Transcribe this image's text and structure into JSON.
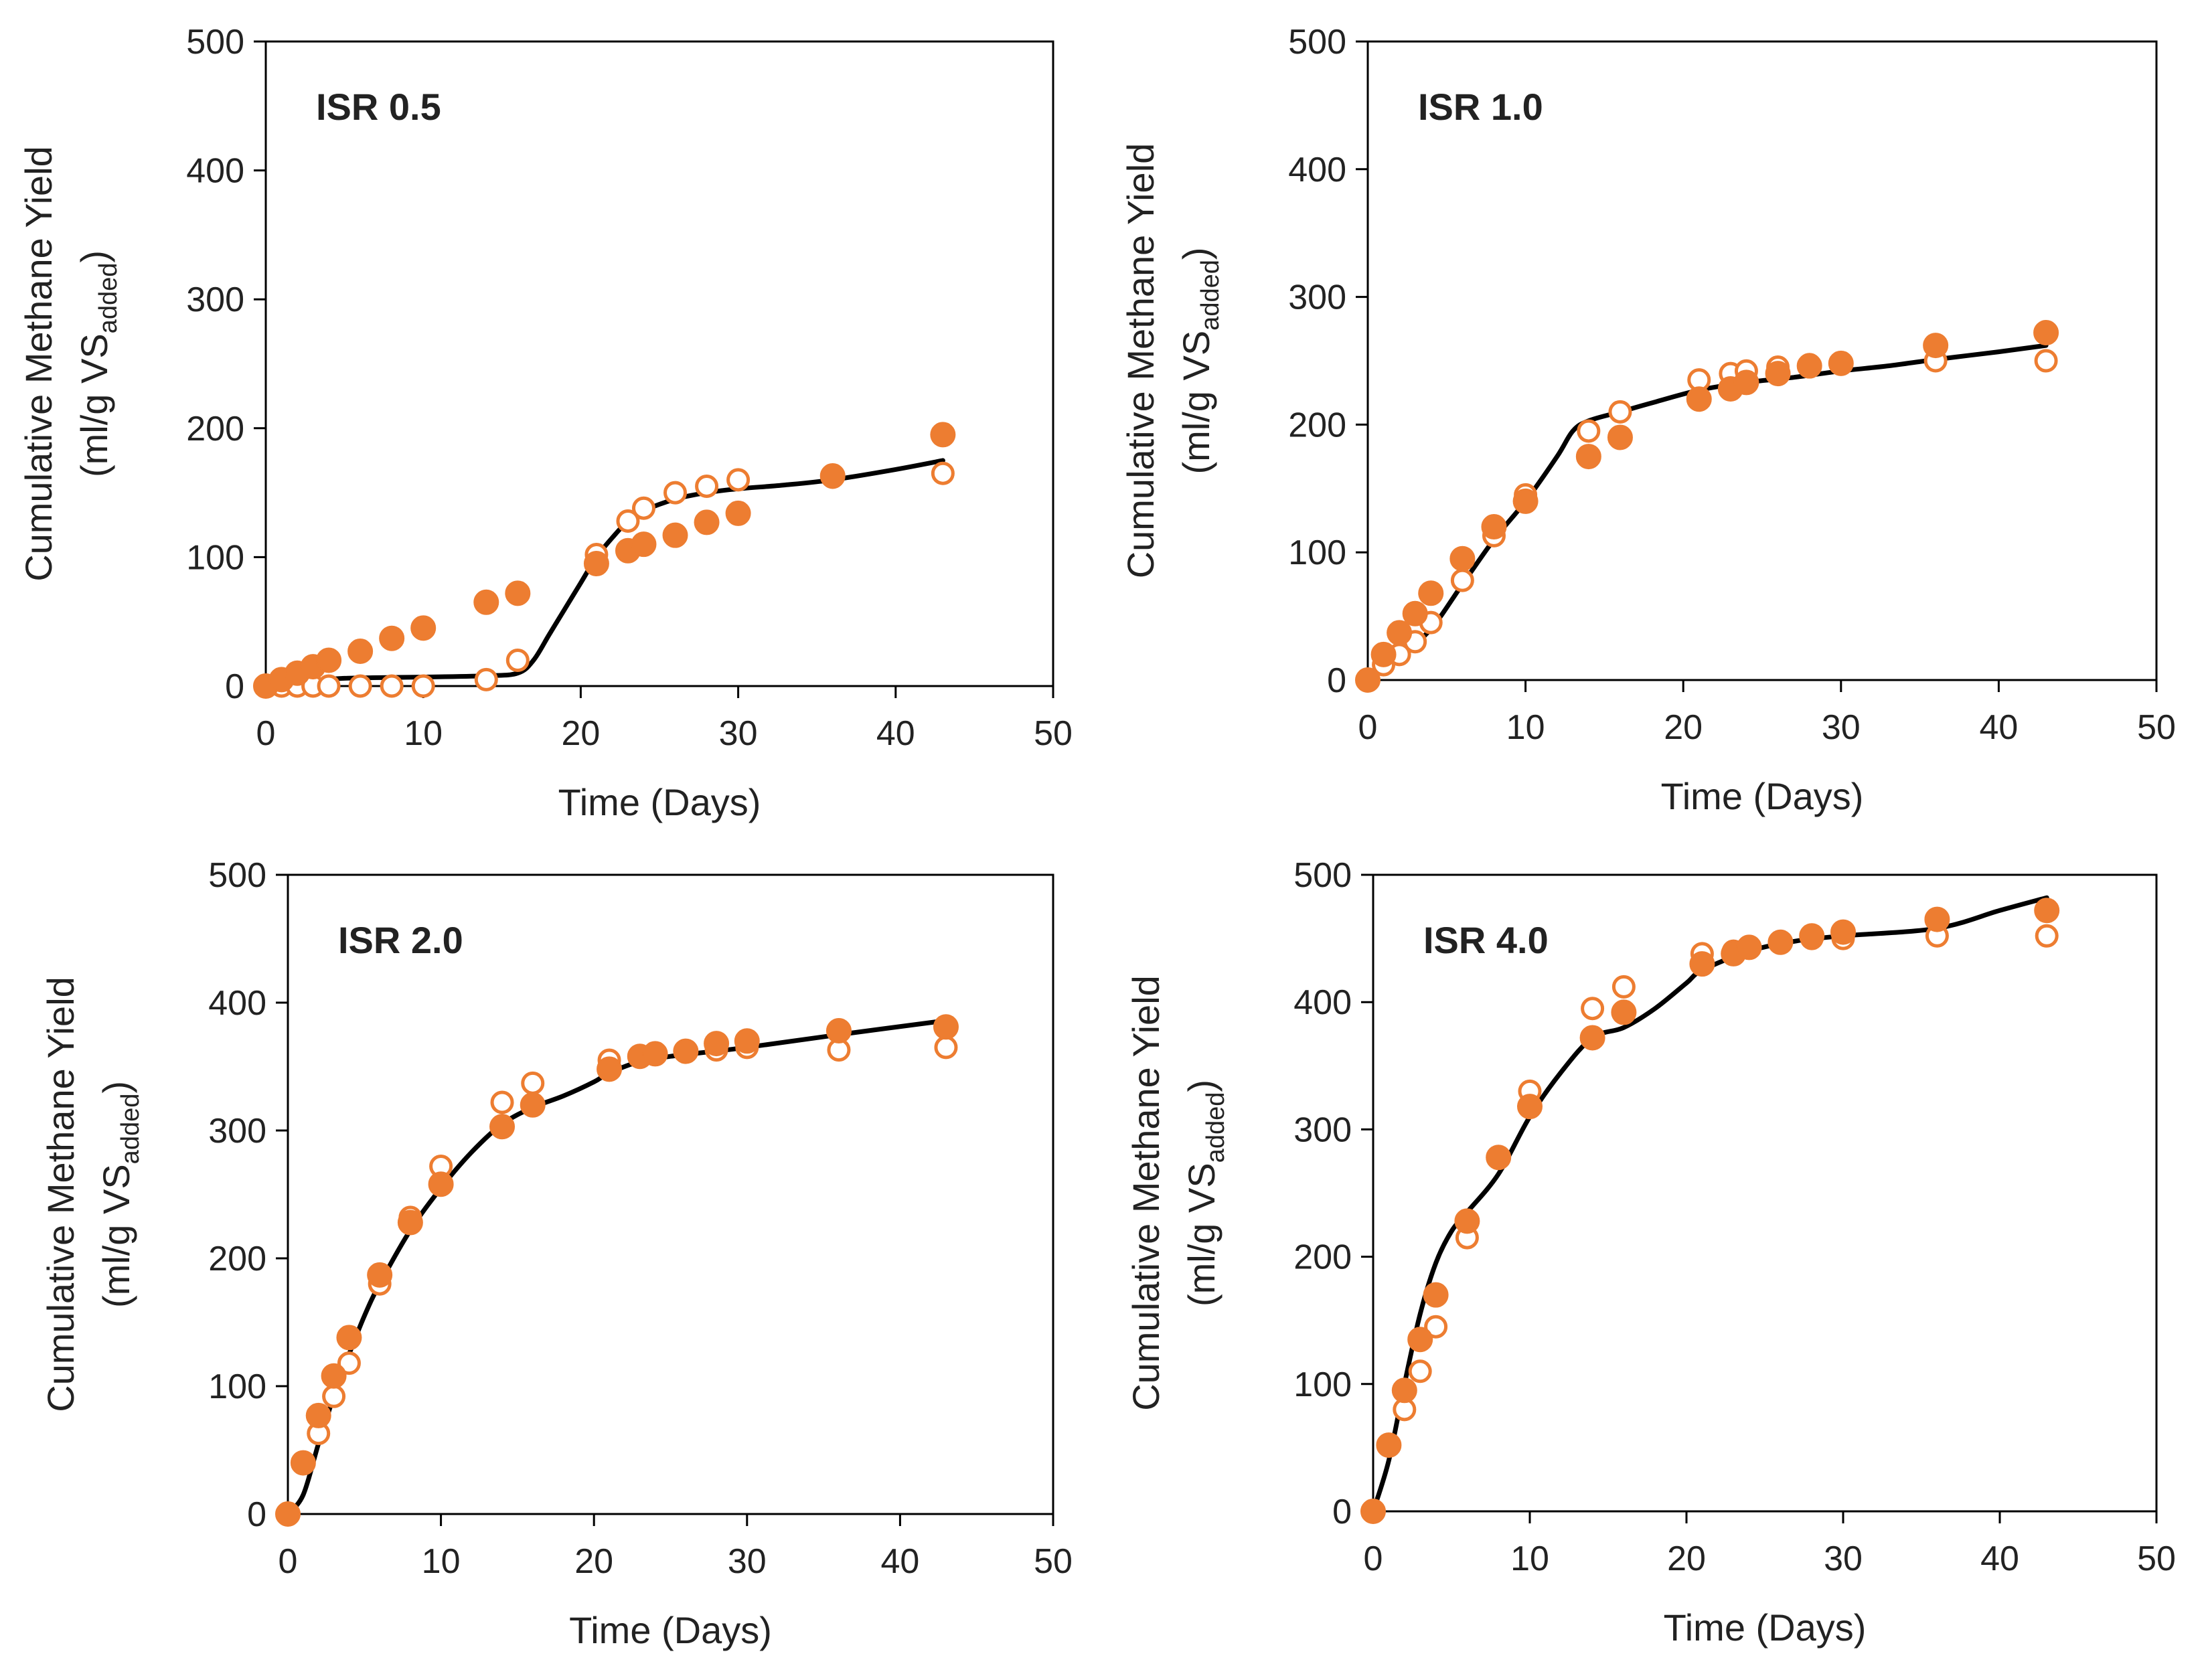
{
  "figure": {
    "fill_color": "#ED7D31",
    "line_color": "#000000"
  },
  "chart_data": [
    {
      "type": "scatter",
      "title": "ISR 0.5",
      "xlabel": "Time (Days)",
      "ylabel": [
        "Cumulative Methane Yield",
        "(ml/g VS",
        "added",
        ")"
      ],
      "xlim": [
        0,
        50
      ],
      "ylim": [
        0,
        500
      ],
      "xticks": [
        "0",
        "10",
        "20",
        "30",
        "40",
        "50"
      ],
      "yticks": [
        "0",
        "100",
        "200",
        "300",
        "400",
        "500"
      ],
      "grid": false,
      "series": [
        {
          "name": "filled markers",
          "style": "filled",
          "x": [
            0,
            1,
            2,
            3,
            4,
            6,
            8,
            10,
            14,
            16,
            21,
            23,
            24,
            26,
            28,
            30,
            36,
            43
          ],
          "y": [
            0,
            5,
            10,
            15,
            20,
            27,
            37,
            45,
            65,
            72,
            95,
            105,
            110,
            117,
            127,
            134,
            163,
            195
          ]
        },
        {
          "name": "open markers",
          "style": "open",
          "x": [
            0,
            1,
            2,
            3,
            4,
            6,
            8,
            10,
            14,
            16,
            21,
            23,
            24,
            26,
            28,
            30,
            36,
            43
          ],
          "y": [
            0,
            0,
            0,
            0,
            0,
            0,
            0,
            0,
            5,
            20,
            102,
            128,
            138,
            150,
            155,
            160,
            162,
            165
          ]
        },
        {
          "name": "model fit",
          "style": "line",
          "x": [
            0,
            2,
            5,
            10,
            14,
            16,
            17,
            18,
            19,
            20,
            21,
            22,
            23,
            24,
            26,
            28,
            30,
            33,
            36,
            40,
            43
          ],
          "y": [
            0,
            3,
            6,
            7,
            8,
            10,
            20,
            40,
            60,
            80,
            100,
            115,
            128,
            136,
            145,
            150,
            153,
            156,
            160,
            168,
            175
          ]
        }
      ]
    },
    {
      "type": "scatter",
      "title": "ISR 1.0",
      "xlabel": "Time (Days)",
      "ylabel": [
        "Cumulative Methane Yield",
        "(ml/g VS",
        "added",
        ")"
      ],
      "xlim": [
        0,
        50
      ],
      "ylim": [
        0,
        500
      ],
      "xticks": [
        "0",
        "10",
        "20",
        "30",
        "40",
        "50"
      ],
      "yticks": [
        "0",
        "100",
        "200",
        "300",
        "400",
        "500"
      ],
      "grid": false,
      "series": [
        {
          "name": "filled markers",
          "style": "filled",
          "x": [
            0,
            1,
            2,
            3,
            4,
            6,
            8,
            10,
            14,
            16,
            21,
            23,
            24,
            26,
            28,
            30,
            36,
            43
          ],
          "y": [
            0,
            20,
            37,
            52,
            68,
            95,
            120,
            140,
            175,
            190,
            220,
            228,
            233,
            240,
            246,
            248,
            262,
            272
          ]
        },
        {
          "name": "open markers",
          "style": "open",
          "x": [
            0,
            1,
            2,
            3,
            4,
            6,
            8,
            10,
            14,
            16,
            21,
            23,
            24,
            26,
            28,
            30,
            36,
            43
          ],
          "y": [
            0,
            12,
            20,
            30,
            45,
            78,
            113,
            145,
            195,
            210,
            235,
            240,
            242,
            245,
            247,
            248,
            250,
            250
          ]
        },
        {
          "name": "model fit",
          "style": "line",
          "x": [
            0,
            2,
            4,
            6,
            8,
            10,
            12,
            13,
            14,
            16,
            18,
            21,
            24,
            27,
            30,
            33,
            36,
            40,
            43
          ],
          "y": [
            0,
            18,
            40,
            75,
            110,
            140,
            175,
            195,
            203,
            210,
            217,
            227,
            233,
            237,
            242,
            246,
            251,
            257,
            262
          ]
        }
      ]
    },
    {
      "type": "scatter",
      "title": "ISR 2.0",
      "xlabel": "Time (Days)",
      "ylabel": [
        "Cumulative Methane Yield",
        "(ml/g VS",
        "added",
        ")"
      ],
      "xlim": [
        0,
        50
      ],
      "ylim": [
        0,
        500
      ],
      "xticks": [
        "0",
        "10",
        "20",
        "30",
        "40",
        "50"
      ],
      "yticks": [
        "0",
        "100",
        "200",
        "300",
        "400",
        "500"
      ],
      "grid": false,
      "series": [
        {
          "name": "filled markers",
          "style": "filled",
          "x": [
            0,
            1,
            2,
            3,
            4,
            6,
            8,
            10,
            14,
            16,
            21,
            23,
            24,
            26,
            28,
            30,
            36,
            43
          ],
          "y": [
            0,
            40,
            77,
            108,
            138,
            187,
            228,
            258,
            303,
            320,
            348,
            358,
            360,
            362,
            368,
            370,
            378,
            381
          ]
        },
        {
          "name": "open markers",
          "style": "open",
          "x": [
            0,
            1,
            2,
            3,
            4,
            6,
            8,
            10,
            14,
            16,
            21,
            23,
            24,
            26,
            28,
            30,
            36,
            43
          ],
          "y": [
            0,
            40,
            63,
            92,
            118,
            180,
            232,
            272,
            322,
            337,
            355,
            358,
            360,
            362,
            363,
            365,
            363,
            365
          ]
        },
        {
          "name": "model fit",
          "style": "line",
          "x": [
            0,
            1,
            2,
            3,
            4,
            5,
            6,
            8,
            10,
            12,
            14,
            16,
            18,
            20,
            21,
            23,
            25,
            30,
            36,
            43
          ],
          "y": [
            0,
            15,
            55,
            92,
            125,
            155,
            180,
            222,
            255,
            283,
            305,
            318,
            327,
            338,
            345,
            354,
            358,
            365,
            375,
            386
          ]
        }
      ]
    },
    {
      "type": "scatter",
      "title": "ISR 4.0",
      "xlabel": "Time (Days)",
      "ylabel": [
        "Cumulative Methane Yield",
        "(ml/g VS",
        "added",
        ")"
      ],
      "xlim": [
        0,
        50
      ],
      "ylim": [
        0,
        500
      ],
      "xticks": [
        "0",
        "10",
        "20",
        "30",
        "40",
        "50"
      ],
      "yticks": [
        "0",
        "100",
        "200",
        "300",
        "400",
        "500"
      ],
      "grid": false,
      "series": [
        {
          "name": "filled markers",
          "style": "filled",
          "x": [
            0,
            1,
            2,
            3,
            4,
            6,
            8,
            10,
            14,
            16,
            21,
            23,
            24,
            26,
            28,
            30,
            36,
            43
          ],
          "y": [
            0,
            52,
            95,
            135,
            170,
            228,
            278,
            318,
            372,
            392,
            430,
            438,
            443,
            447,
            452,
            455,
            465,
            472
          ]
        },
        {
          "name": "open markers",
          "style": "open",
          "x": [
            0,
            1,
            2,
            3,
            4,
            6,
            8,
            10,
            14,
            16,
            21,
            23,
            24,
            26,
            28,
            30,
            36,
            43
          ],
          "y": [
            0,
            52,
            80,
            110,
            145,
            215,
            278,
            330,
            395,
            412,
            438,
            440,
            443,
            447,
            450,
            450,
            452,
            452
          ]
        },
        {
          "name": "model fit",
          "style": "line",
          "x": [
            0,
            1,
            2,
            3,
            4,
            5,
            6,
            8,
            10,
            12,
            14,
            16,
            18,
            20,
            21,
            24,
            27,
            30,
            36,
            40,
            43
          ],
          "y": [
            0,
            40,
            100,
            155,
            195,
            220,
            235,
            265,
            310,
            345,
            372,
            380,
            395,
            415,
            425,
            440,
            448,
            452,
            458,
            472,
            482
          ]
        }
      ]
    }
  ]
}
